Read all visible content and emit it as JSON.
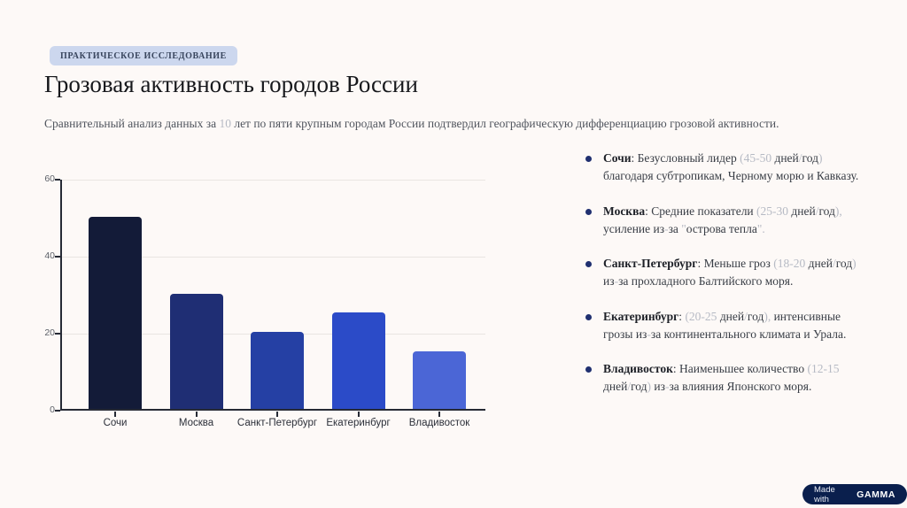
{
  "slide": {
    "badge_label": "ПРАКТИЧЕСКОЕ ИССЛЕДОВАНИЕ",
    "title": "Грозовая активность городов России",
    "subtitle_segments": [
      {
        "text": "Сравнительный анализ данных за ",
        "muted": false
      },
      {
        "text": "10",
        "muted": true
      },
      {
        "text": " лет по пяти крупным городам России подтвердил географическую дифференциацию грозовой активности.",
        "muted": false
      }
    ]
  },
  "chart_data": {
    "type": "bar",
    "categories": [
      "Сочи",
      "Москва",
      "Санкт-Петербург",
      "Екатеринбург",
      "Владивосток"
    ],
    "values": [
      50,
      30,
      20,
      25,
      15
    ],
    "bar_colors": [
      "#131b38",
      "#1f2e74",
      "#2540a4",
      "#2b4bc8",
      "#4b66d6"
    ],
    "title": "",
    "xlabel": "",
    "ylabel": "",
    "ylim": [
      0,
      60
    ],
    "yticks": [
      0,
      20,
      40,
      60
    ],
    "grid": true,
    "legend": false
  },
  "bullets": [
    {
      "label": "Сочи",
      "segments": [
        {
          "text": ": Безусловный лидер ",
          "muted": false
        },
        {
          "text": "(45-50",
          "muted": true
        },
        {
          "text": " дней",
          "muted": false
        },
        {
          "text": "/",
          "muted": true
        },
        {
          "text": "год",
          "muted": false
        },
        {
          "text": ")",
          "muted": true
        },
        {
          "text": " благодаря субтропикам, Черному морю и Кавказу.",
          "muted": false
        }
      ]
    },
    {
      "label": "Москва",
      "segments": [
        {
          "text": ": Средние показатели ",
          "muted": false
        },
        {
          "text": "(25-30",
          "muted": true
        },
        {
          "text": " дней",
          "muted": false
        },
        {
          "text": "/",
          "muted": true
        },
        {
          "text": "год",
          "muted": false
        },
        {
          "text": "),",
          "muted": true
        },
        {
          "text": " усиление из",
          "muted": false
        },
        {
          "text": "-",
          "muted": true
        },
        {
          "text": "за ",
          "muted": false
        },
        {
          "text": "\"",
          "muted": true
        },
        {
          "text": "острова тепла",
          "muted": false
        },
        {
          "text": "\".",
          "muted": true
        }
      ]
    },
    {
      "label": "Санкт-Петербург",
      "segments": [
        {
          "text": ": Меньше гроз ",
          "muted": false
        },
        {
          "text": "(18-20",
          "muted": true
        },
        {
          "text": " дней",
          "muted": false
        },
        {
          "text": "/",
          "muted": true
        },
        {
          "text": "год",
          "muted": false
        },
        {
          "text": ")",
          "muted": true
        },
        {
          "text": " из",
          "muted": false
        },
        {
          "text": "-",
          "muted": true
        },
        {
          "text": "за прохладного Балтийского моря.",
          "muted": false
        }
      ]
    },
    {
      "label": "Екатеринбург",
      "segments": [
        {
          "text": ": ",
          "muted": false
        },
        {
          "text": "(20-25",
          "muted": true
        },
        {
          "text": " дней",
          "muted": false
        },
        {
          "text": "/",
          "muted": true
        },
        {
          "text": "год",
          "muted": false
        },
        {
          "text": "),",
          "muted": true
        },
        {
          "text": " интенсивные грозы из",
          "muted": false
        },
        {
          "text": "-",
          "muted": true
        },
        {
          "text": "за континентального климата и Урала.",
          "muted": false
        }
      ]
    },
    {
      "label": "Владивосток",
      "segments": [
        {
          "text": ": Наименьшее количество ",
          "muted": false
        },
        {
          "text": "(12-15",
          "muted": true
        },
        {
          "text": " дней",
          "muted": false
        },
        {
          "text": "/",
          "muted": true
        },
        {
          "text": "год",
          "muted": false
        },
        {
          "text": ")",
          "muted": true
        },
        {
          "text": " из",
          "muted": false
        },
        {
          "text": "-",
          "muted": true
        },
        {
          "text": "за влияния Японского моря.",
          "muted": false
        }
      ]
    }
  ],
  "footer": {
    "made_with": "Made with",
    "brand": "GAMMA"
  }
}
